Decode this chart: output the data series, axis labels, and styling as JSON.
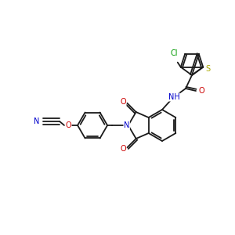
{
  "bg_color": "#ffffff",
  "bond_color": "#1a1a1a",
  "atom_colors": {
    "N": "#0000cc",
    "O": "#cc0000",
    "S": "#aaaa00",
    "Cl": "#009900",
    "C": "#1a1a1a"
  },
  "figsize": [
    3.0,
    3.0
  ],
  "dpi": 100,
  "lw": 1.3,
  "fontsize": 7.0
}
